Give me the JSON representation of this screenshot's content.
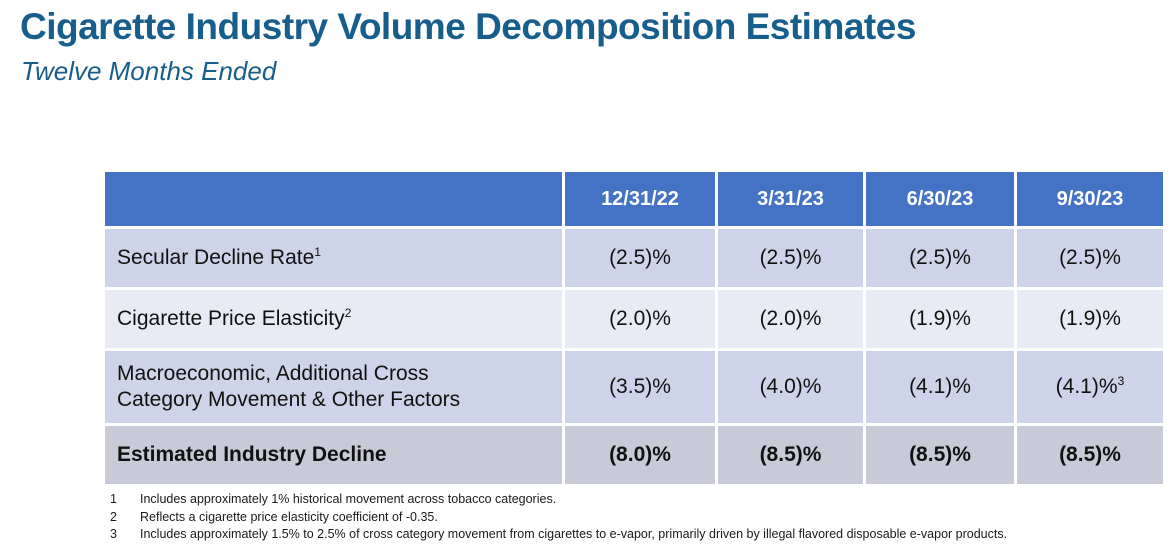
{
  "page": {
    "title": "Cigarette Industry Volume Decomposition Estimates",
    "subtitle": "Twelve Months Ended"
  },
  "table": {
    "columns": [
      "12/31/22",
      "3/31/23",
      "6/30/23",
      "9/30/23"
    ],
    "rows": [
      {
        "label": "Secular Decline Rate",
        "label_sup": "1",
        "values": [
          "(2.5)%",
          "(2.5)%",
          "(2.5)%",
          "(2.5)%"
        ],
        "values_sup": [
          "",
          "",
          "",
          ""
        ],
        "is_total": false
      },
      {
        "label": "Cigarette Price Elasticity",
        "label_sup": "2",
        "values": [
          "(2.0)%",
          "(2.0)%",
          "(1.9)%",
          "(1.9)%"
        ],
        "values_sup": [
          "",
          "",
          "",
          ""
        ],
        "is_total": false
      },
      {
        "label": "Macroeconomic, Additional Cross Category Movement & Other Factors",
        "label_sup": "",
        "values": [
          "(3.5)%",
          "(4.0)%",
          "(4.1)%",
          "(4.1)%"
        ],
        "values_sup": [
          "",
          "",
          "",
          "3"
        ],
        "is_total": false
      },
      {
        "label": "Estimated Industry Decline",
        "label_sup": "",
        "values": [
          "(8.0)%",
          "(8.5)%",
          "(8.5)%",
          "(8.5)%"
        ],
        "values_sup": [
          "",
          "",
          "",
          ""
        ],
        "is_total": true
      }
    ]
  },
  "footnotes": [
    {
      "num": "1",
      "text": "Includes approximately 1% historical movement across tobacco categories."
    },
    {
      "num": "2",
      "text": "Reflects a cigarette price elasticity coefficient of -0.35."
    },
    {
      "num": "3",
      "text": "Includes approximately 1.5% to 2.5% of cross category movement from cigarettes to e-vapor, primarily driven by illegal flavored disposable e-vapor products."
    }
  ],
  "colors": {
    "title_blue": "#175e8d",
    "header_bg": "#4472c4",
    "header_text": "#ffffff",
    "band_dark": "#cdd3e8",
    "band_light": "#e9ebf4",
    "total_row_bg": "#c8cbd7",
    "body_text": "#111111"
  }
}
